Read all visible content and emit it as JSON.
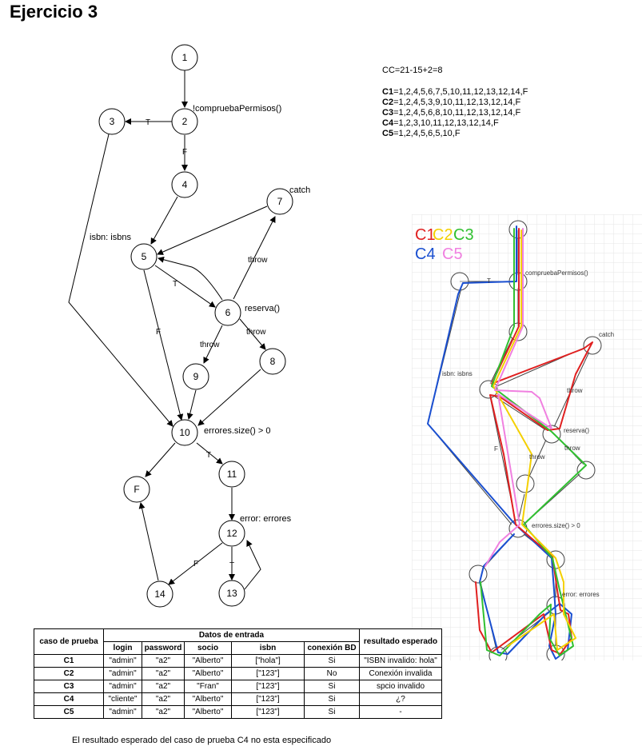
{
  "title": "Ejercicio 3",
  "graph": {
    "nodes": [
      "1",
      "2",
      "3",
      "4",
      "5",
      "6",
      "7",
      "8",
      "9",
      "10",
      "11",
      "12",
      "13",
      "14",
      "F"
    ],
    "labels": {
      "n2": "!compruebaPermisos()",
      "n7": "catch",
      "n6": "reserva()",
      "n10": "errores.size() > 0",
      "n12": "error: errores",
      "isbn": "isbn: isbns"
    },
    "edge_labels": {
      "t_2_3": "T",
      "f_2_4": "F",
      "t_5_6": "T",
      "f_5_10": "F",
      "throw_6_7": "throw",
      "throw_6_9": "throw",
      "throw_6_8": "throw",
      "t_10_11": "T",
      "f_12_14": "F",
      "t_12_13": "T"
    }
  },
  "cc": {
    "formula": "CC=21-15+2=8",
    "paths": [
      {
        "name": "C1",
        "value": "=1,2,4,5,6,7,5,10,11,12,13,12,14,F"
      },
      {
        "name": "C2",
        "value": "=1,2,4,5,3,9,10,11,12,13,12,14,F"
      },
      {
        "name": "C3",
        "value": "=1,2,4,5,6,8,10,11,12,13,12,14,F"
      },
      {
        "name": "C4",
        "value": "=1,2,3,10,11,12,13,12,14,F"
      },
      {
        "name": "C5",
        "value": "=1,2,4,5,6,5,10,F"
      }
    ]
  },
  "sketch": {
    "legend": [
      "C1",
      "C2",
      "C3",
      "C4",
      "C5"
    ],
    "colors": {
      "C1": "#e02020",
      "C2": "#f4d000",
      "C3": "#30c030",
      "C4": "#1a4fd0",
      "C5": "#f080e0"
    },
    "labels": {
      "n2": "compruebaPermisos()",
      "catch": "catch",
      "throw1": "throw",
      "isbn": "isbn: isbns",
      "reserva": "reserva()",
      "throw2": "throw",
      "throw3": "throw",
      "errores": "errores.size() > 0",
      "error": "error: errores",
      "t": "T",
      "f": "F"
    }
  },
  "table": {
    "col_case": "caso de prueba",
    "group_inputs": "Datos de entrada",
    "col_result": "resultado esperado",
    "subheaders": [
      "login",
      "password",
      "socio",
      "isbn",
      "conexión BD"
    ],
    "rows": [
      [
        "C1",
        "\"admin\"",
        "\"a2\"",
        "\"Alberto\"",
        "[\"hola\"]",
        "Si",
        "\"ISBN invalido: hola\""
      ],
      [
        "C2",
        "\"admin\"",
        "\"a2\"",
        "\"Alberto\"",
        "[\"123\"]",
        "No",
        "Conexión invalida"
      ],
      [
        "C3",
        "\"admin\"",
        "\"a2\"",
        "\"Fran\"",
        "[\"123\"]",
        "Si",
        "spcio invalido"
      ],
      [
        "C4",
        "\"cliente\"",
        "\"a2\"",
        "\"Alberto\"",
        "[\"123\"]",
        "Si",
        "¿?"
      ],
      [
        "C5",
        "\"admin\"",
        "\"a2\"",
        "\"Alberto\"",
        "[\"123\"]",
        "Si",
        "-"
      ]
    ]
  },
  "footnote": "El resultado esperado del caso de prueba C4 no esta especificado"
}
